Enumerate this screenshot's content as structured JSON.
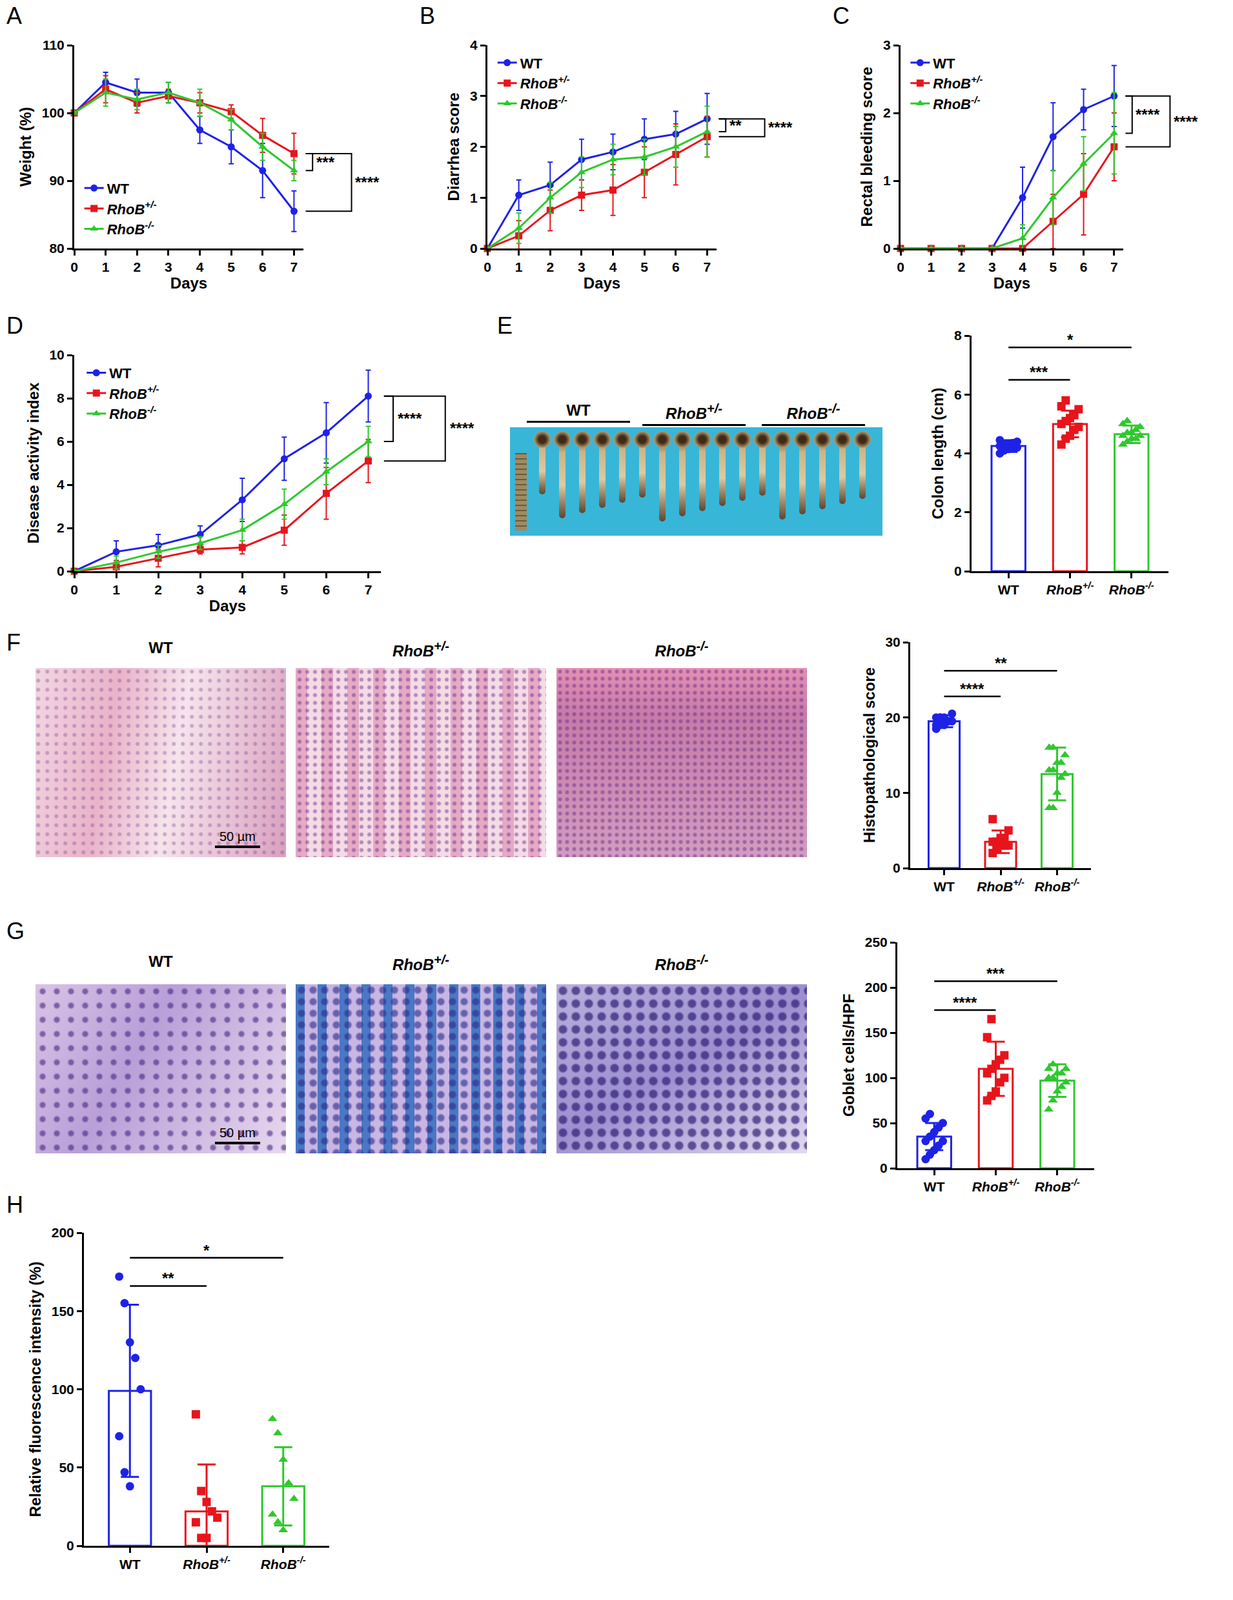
{
  "chart_data": [
    {
      "panel": "A",
      "type": "line",
      "x": [
        0,
        1,
        2,
        3,
        4,
        5,
        6,
        7
      ],
      "xlabel": "Days",
      "ylabel": "Weight (%)",
      "xlim": [
        0,
        7.3
      ],
      "xticks": [
        0,
        1,
        2,
        3,
        4,
        5,
        6,
        7
      ],
      "ylim": [
        80,
        110
      ],
      "yticks": [
        80,
        90,
        100,
        110
      ],
      "grid": false,
      "legend": "lower left",
      "series": [
        {
          "name": "WT",
          "color": "#1e22e6",
          "marker": "circle",
          "values": [
            100,
            104.5,
            103,
            103,
            97.5,
            95,
            91.5,
            85.5
          ],
          "error": [
            0,
            1.5,
            2,
            1.5,
            2,
            2.5,
            4,
            3
          ]
        },
        {
          "name": "RhoB+/-",
          "color": "#e8141c",
          "marker": "square",
          "values": [
            100,
            103.5,
            101.5,
            102.5,
            101.5,
            100.2,
            96.7,
            94
          ],
          "error": [
            0,
            2,
            1.5,
            1,
            1.5,
            1,
            2.5,
            3
          ]
        },
        {
          "name": "RhoB-/-",
          "color": "#2ec82e",
          "marker": "triangle",
          "values": [
            100,
            103,
            102,
            103,
            101.5,
            99,
            95,
            91.5
          ],
          "error": [
            0,
            2,
            1.5,
            1.5,
            2,
            1.5,
            2,
            1.5
          ]
        }
      ],
      "annotations": [
        {
          "y0": 94,
          "y1": 91.5,
          "text": "***"
        },
        {
          "y0": 94,
          "y1": 85.5,
          "text": "****"
        }
      ]
    },
    {
      "panel": "B",
      "type": "line",
      "x": [
        0,
        1,
        2,
        3,
        4,
        5,
        6,
        7
      ],
      "xlabel": "Days",
      "ylabel": "Diarrhea score",
      "xlim": [
        0,
        7.3
      ],
      "xticks": [
        0,
        1,
        2,
        3,
        4,
        5,
        6,
        7
      ],
      "ylim": [
        0,
        4
      ],
      "yticks": [
        0,
        1,
        2,
        3,
        4
      ],
      "grid": false,
      "legend": "upper left",
      "series": [
        {
          "name": "WT",
          "color": "#1e22e6",
          "marker": "circle",
          "values": [
            0,
            1.05,
            1.25,
            1.75,
            1.9,
            2.15,
            2.25,
            2.55
          ],
          "error": [
            0,
            0.3,
            0.45,
            0.4,
            0.35,
            0.4,
            0.45,
            0.5
          ]
        },
        {
          "name": "RhoB+/-",
          "color": "#e8141c",
          "marker": "square",
          "values": [
            0,
            0.25,
            0.75,
            1.05,
            1.15,
            1.5,
            1.85,
            2.2
          ],
          "error": [
            0,
            0.3,
            0.4,
            0.3,
            0.5,
            0.5,
            0.6,
            0.4
          ]
        },
        {
          "name": "RhoB-/-",
          "color": "#2ec82e",
          "marker": "triangle",
          "values": [
            0,
            0.4,
            1.0,
            1.5,
            1.75,
            1.8,
            2.0,
            2.3
          ],
          "error": [
            0,
            0.3,
            0.3,
            0.3,
            0.3,
            0.35,
            0.4,
            0.5
          ]
        }
      ],
      "annotations": [
        {
          "y0": 2.55,
          "y1": 2.3,
          "text": "**"
        },
        {
          "y0": 2.55,
          "y1": 2.2,
          "text": "****"
        }
      ]
    },
    {
      "panel": "C",
      "type": "line",
      "x": [
        0,
        1,
        2,
        3,
        4,
        5,
        6,
        7
      ],
      "xlabel": "Days",
      "ylabel": "Rectal bleeding score",
      "xlim": [
        0,
        7.3
      ],
      "xticks": [
        0,
        1,
        2,
        3,
        4,
        5,
        6,
        7
      ],
      "ylim": [
        0,
        3
      ],
      "yticks": [
        0,
        1,
        2,
        3
      ],
      "grid": false,
      "legend": "upper left",
      "series": [
        {
          "name": "WT",
          "color": "#1e22e6",
          "marker": "circle",
          "values": [
            0,
            0,
            0,
            0,
            0.75,
            1.65,
            2.05,
            2.25
          ],
          "error": [
            0,
            0,
            0,
            0,
            0.45,
            0.5,
            0.3,
            0.45
          ]
        },
        {
          "name": "RhoB+/-",
          "color": "#e8141c",
          "marker": "square",
          "values": [
            0,
            0,
            0,
            0,
            0,
            0.4,
            0.8,
            1.5
          ],
          "error": [
            0,
            0,
            0,
            0,
            0,
            0.4,
            0.6,
            0.5
          ]
        },
        {
          "name": "RhoB-/-",
          "color": "#2ec82e",
          "marker": "triangle",
          "values": [
            0,
            0,
            0,
            0,
            0.15,
            0.75,
            1.25,
            1.7
          ],
          "error": [
            0,
            0,
            0,
            0,
            0.2,
            0.4,
            0.4,
            0.6
          ]
        }
      ],
      "annotations": [
        {
          "y0": 2.25,
          "y1": 1.7,
          "text": "****"
        },
        {
          "y0": 2.25,
          "y1": 1.5,
          "text": "****"
        }
      ]
    },
    {
      "panel": "D",
      "type": "line",
      "x": [
        0,
        1,
        2,
        3,
        4,
        5,
        6,
        7
      ],
      "xlabel": "Days",
      "ylabel": "Disease activity index",
      "xlim": [
        0,
        7.3
      ],
      "xticks": [
        0,
        1,
        2,
        3,
        4,
        5,
        6,
        7
      ],
      "ylim": [
        0,
        10
      ],
      "yticks": [
        0,
        2,
        4,
        6,
        8,
        10
      ],
      "grid": false,
      "legend": "upper left",
      "series": [
        {
          "name": "WT",
          "color": "#1e22e6",
          "marker": "circle",
          "values": [
            0,
            0.9,
            1.2,
            1.7,
            3.3,
            5.2,
            6.4,
            8.1
          ],
          "error": [
            0,
            0.5,
            0.5,
            0.4,
            1,
            1,
            1.4,
            1.2
          ]
        },
        {
          "name": "RhoB+/-",
          "color": "#e8141c",
          "marker": "square",
          "values": [
            0,
            0.2,
            0.6,
            1.0,
            1.1,
            1.9,
            3.6,
            5.1
          ],
          "error": [
            0,
            0.3,
            0.4,
            0.2,
            0.3,
            0.7,
            1.2,
            1
          ]
        },
        {
          "name": "RhoB-/-",
          "color": "#2ec82e",
          "marker": "triangle",
          "values": [
            0,
            0.4,
            0.9,
            1.3,
            1.9,
            3.1,
            4.6,
            6.0
          ],
          "error": [
            0,
            0.3,
            0.3,
            0.3,
            0.5,
            0.7,
            0.6,
            0.7
          ]
        }
      ],
      "annotations": [
        {
          "y0": 8.1,
          "y1": 6.0,
          "text": "****"
        },
        {
          "y0": 8.1,
          "y1": 5.1,
          "text": "****"
        }
      ]
    },
    {
      "type": "bar",
      "categories": [
        "WT",
        "RhoB+/-",
        "RhoB-/-"
      ],
      "ylabel": "Colon length (cm)",
      "values": [
        4.25,
        5.0,
        4.65
      ],
      "sd": [
        0.2,
        0.45,
        0.3
      ],
      "points": [
        [
          4.0,
          4.1,
          4.15,
          4.2,
          4.2,
          4.25,
          4.3,
          4.3,
          4.35,
          4.4,
          4.45,
          4.3
        ],
        [
          4.3,
          4.5,
          4.6,
          4.8,
          4.9,
          5.0,
          5.1,
          5.2,
          5.3,
          5.5,
          5.6,
          5.8
        ],
        [
          4.3,
          4.4,
          4.5,
          4.5,
          4.6,
          4.6,
          4.7,
          4.7,
          4.8,
          4.9,
          5.0,
          5.1
        ]
      ],
      "colors": [
        "#1e22e6",
        "#e8141c",
        "#2ec82e"
      ],
      "ylim": [
        0,
        8
      ],
      "yticks": [
        0,
        2,
        4,
        6,
        8
      ],
      "grid": false,
      "annotations": [
        {
          "from": 0,
          "to": 1,
          "y": 6.5,
          "text": "***"
        },
        {
          "from": 0,
          "to": 2,
          "y": 7.6,
          "text": "*"
        }
      ]
    },
    {
      "type": "bar",
      "categories": [
        "WT",
        "RhoB+/-",
        "RhoB-/-"
      ],
      "ylabel": "Histopathological score",
      "values": [
        19.5,
        3.5,
        12.5
      ],
      "sd": [
        0.8,
        1.5,
        3.5
      ],
      "points": [
        [
          18.5,
          19,
          19,
          19.5,
          19.5,
          20,
          20,
          20,
          19.5,
          20.5,
          19,
          20
        ],
        [
          2,
          2.5,
          3,
          3,
          3,
          3.5,
          3.5,
          4,
          4,
          5,
          6.5,
          2.5
        ],
        [
          8,
          8,
          10,
          12,
          12.5,
          13,
          13,
          14,
          14,
          15,
          16,
          16
        ]
      ],
      "colors": [
        "#1e22e6",
        "#e8141c",
        "#2ec82e"
      ],
      "ylim": [
        0,
        30
      ],
      "yticks": [
        0,
        10,
        20,
        30
      ],
      "grid": false,
      "annotations": [
        {
          "from": 0,
          "to": 1,
          "y": 22.8,
          "text": "****"
        },
        {
          "from": 0,
          "to": 2,
          "y": 26.2,
          "text": "**"
        }
      ]
    },
    {
      "type": "bar",
      "categories": [
        "WT",
        "RhoB+/-",
        "RhoB-/-"
      ],
      "ylabel": "Goblet cells/HPF",
      "values": [
        35,
        110,
        97
      ],
      "sd": [
        15,
        30,
        18
      ],
      "points": [
        [
          10,
          15,
          20,
          25,
          30,
          30,
          35,
          40,
          45,
          50,
          55,
          60
        ],
        [
          75,
          80,
          85,
          95,
          100,
          105,
          110,
          115,
          120,
          125,
          145,
          165
        ],
        [
          65,
          75,
          85,
          90,
          95,
          100,
          100,
          105,
          105,
          110,
          110,
          115
        ]
      ],
      "colors": [
        "#1e22e6",
        "#e8141c",
        "#2ec82e"
      ],
      "ylim": [
        0,
        250
      ],
      "yticks": [
        0,
        50,
        100,
        150,
        200,
        250
      ],
      "grid": false,
      "annotations": [
        {
          "from": 0,
          "to": 1,
          "y": 175,
          "text": "****"
        },
        {
          "from": 0,
          "to": 2,
          "y": 207,
          "text": "***"
        }
      ]
    },
    {
      "panel": "H",
      "type": "bar",
      "categories": [
        "WT",
        "RhoB+/-",
        "RhoB-/-"
      ],
      "ylabel": "Relative fluorescence intensity (%)",
      "values": [
        99,
        22,
        38
      ],
      "sd": [
        55,
        30,
        25
      ],
      "points": [
        [
          172,
          155,
          130,
          120,
          100,
          70,
          47,
          38
        ],
        [
          84,
          35,
          28,
          22,
          18,
          15,
          5,
          5
        ],
        [
          81,
          72,
          55,
          40,
          30,
          20,
          15,
          10
        ]
      ],
      "colors": [
        "#1e22e6",
        "#e8141c",
        "#2ec82e"
      ],
      "ylim": [
        0,
        200
      ],
      "yticks": [
        0,
        50,
        100,
        150,
        200
      ],
      "grid": false,
      "annotations": [
        {
          "from": 0,
          "to": 1,
          "y": 166,
          "text": "**"
        },
        {
          "from": 0,
          "to": 2,
          "y": 184,
          "text": "*"
        }
      ]
    }
  ],
  "images": [
    {
      "panel": "E",
      "labels": [
        "WT",
        "RhoB+/-",
        "RhoB-/-"
      ]
    },
    {
      "panel": "F",
      "labels": [
        "WT",
        "RhoB+/-",
        "RhoB-/-"
      ],
      "scale_bar": "50 µm"
    },
    {
      "panel": "G",
      "labels": [
        "WT",
        "RhoB+/-",
        "RhoB-/-"
      ],
      "scale_bar": "50 µm"
    }
  ]
}
